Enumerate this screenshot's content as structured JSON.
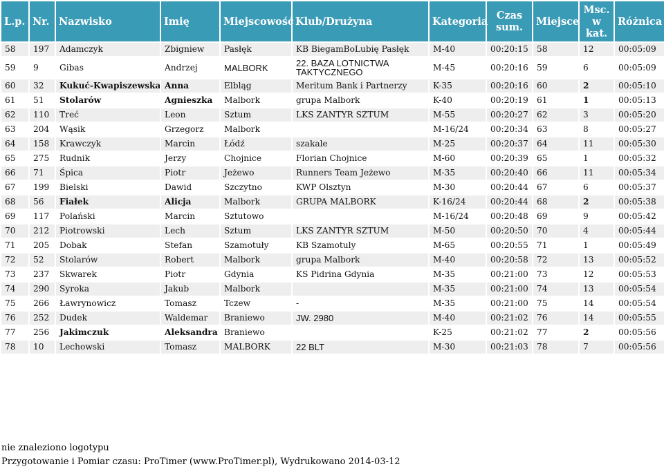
{
  "header": {
    "lp": "L.p.",
    "nr": "Nr.",
    "nazwisko": "Nazwisko",
    "imie": "Imię",
    "miejscowosc": "Miejscowość",
    "klub": "Klub/Drużyna",
    "kategoria": "Kategoria",
    "czas": "Czas sum.",
    "miejsce": "Miejsce",
    "msc_kat": "Msc. w kat.",
    "roznica": "Różnica"
  },
  "rows": [
    {
      "lp": "58",
      "nr": "197",
      "nazwisko": "Adamczyk",
      "imie": "Zbigniew",
      "miejscowosc": "Pasłęk",
      "klub": "KB BiegamBoLubię Pasłęk",
      "kategoria": "M-40",
      "czas": "00:20:15",
      "miejsce": "58",
      "msc_kat": "12",
      "roznica": "00:05:09"
    },
    {
      "lp": "59",
      "nr": "9",
      "nazwisko": "Gibas",
      "imie": "Andrzej",
      "miejscowosc": "MALBORK",
      "klub": "22. BAZA LOTNICTWA TAKTYCZNEGO",
      "kategoria": "M-45",
      "czas": "00:20:16",
      "miejsce": "59",
      "msc_kat": "6",
      "roznica": "00:05:09"
    },
    {
      "lp": "60",
      "nr": "32",
      "nazwisko": "Kukuć-Kwapiszewska",
      "imie": "Anna",
      "miejscowosc": "Elbląg",
      "klub": "Meritum Bank i Partnerzy",
      "kategoria": "K-35",
      "czas": "00:20:16",
      "miejsce": "60",
      "msc_kat": "2",
      "roznica": "00:05:10"
    },
    {
      "lp": "61",
      "nr": "51",
      "nazwisko": "Stolarów",
      "imie": "Agnieszka",
      "miejscowosc": "Malbork",
      "klub": "grupa Malbork",
      "kategoria": "K-40",
      "czas": "00:20:19",
      "miejsce": "61",
      "msc_kat": "1",
      "roznica": "00:05:13"
    },
    {
      "lp": "62",
      "nr": "110",
      "nazwisko": "Treć",
      "imie": "Leon",
      "miejscowosc": "Sztum",
      "klub": "LKS ZANTYR SZTUM",
      "kategoria": "M-55",
      "czas": "00:20:27",
      "miejsce": "62",
      "msc_kat": "3",
      "roznica": "00:05:20"
    },
    {
      "lp": "63",
      "nr": "204",
      "nazwisko": "Wąsik",
      "imie": "Grzegorz",
      "miejscowosc": "Malbork",
      "klub": "",
      "kategoria": "M-16/24",
      "czas": "00:20:34",
      "miejsce": "63",
      "msc_kat": "8",
      "roznica": "00:05:27"
    },
    {
      "lp": "64",
      "nr": "158",
      "nazwisko": "Krawczyk",
      "imie": "Marcin",
      "miejscowosc": "Łódź",
      "klub": "szakale",
      "kategoria": "M-25",
      "czas": "00:20:37",
      "miejsce": "64",
      "msc_kat": "11",
      "roznica": "00:05:30"
    },
    {
      "lp": "65",
      "nr": "275",
      "nazwisko": "Rudnik",
      "imie": "Jerzy",
      "miejscowosc": "Chojnice",
      "klub": "Florian Chojnice",
      "kategoria": "M-60",
      "czas": "00:20:39",
      "miejsce": "65",
      "msc_kat": "1",
      "roznica": "00:05:32"
    },
    {
      "lp": "66",
      "nr": "71",
      "nazwisko": "Śpica",
      "imie": "Piotr",
      "miejscowosc": "Jeżewo",
      "klub": "Runners Team Jeżewo",
      "kategoria": "M-35",
      "czas": "00:20:40",
      "miejsce": "66",
      "msc_kat": "11",
      "roznica": "00:05:34"
    },
    {
      "lp": "67",
      "nr": "199",
      "nazwisko": "Bielski",
      "imie": "Dawid",
      "miejscowosc": "Szczytno",
      "klub": "KWP Olsztyn",
      "kategoria": "M-30",
      "czas": "00:20:44",
      "miejsce": "67",
      "msc_kat": "6",
      "roznica": "00:05:37"
    },
    {
      "lp": "68",
      "nr": "56",
      "nazwisko": "Fiałek",
      "imie": "Alicja",
      "miejscowosc": "Malbork",
      "klub": "GRUPA MALBORK",
      "kategoria": "K-16/24",
      "czas": "00:20:44",
      "miejsce": "68",
      "msc_kat": "2",
      "roznica": "00:05:38"
    },
    {
      "lp": "69",
      "nr": "117",
      "nazwisko": "Polański",
      "imie": "Marcin",
      "miejscowosc": "Sztutowo",
      "klub": "",
      "kategoria": "M-16/24",
      "czas": "00:20:48",
      "miejsce": "69",
      "msc_kat": "9",
      "roznica": "00:05:42"
    },
    {
      "lp": "70",
      "nr": "212",
      "nazwisko": "Piotrowski",
      "imie": "Lech",
      "miejscowosc": "Sztum",
      "klub": "LKS ZANTYR SZTUM",
      "kategoria": "M-50",
      "czas": "00:20:50",
      "miejsce": "70",
      "msc_kat": "4",
      "roznica": "00:05:44"
    },
    {
      "lp": "71",
      "nr": "205",
      "nazwisko": "Dobak",
      "imie": "Stefan",
      "miejscowosc": "Szamotuły",
      "klub": "KB Szamotuly",
      "kategoria": "M-65",
      "czas": "00:20:55",
      "miejsce": "71",
      "msc_kat": "1",
      "roznica": "00:05:49"
    },
    {
      "lp": "72",
      "nr": "52",
      "nazwisko": "Stolarów",
      "imie": "Robert",
      "miejscowosc": "Malbork",
      "klub": "grupa Malbork",
      "kategoria": "M-40",
      "czas": "00:20:58",
      "miejsce": "72",
      "msc_kat": "13",
      "roznica": "00:05:52"
    },
    {
      "lp": "73",
      "nr": "237",
      "nazwisko": "Skwarek",
      "imie": "Piotr",
      "miejscowosc": "Gdynia",
      "klub": "KS Pidrina Gdynia",
      "kategoria": "M-35",
      "czas": "00:21:00",
      "miejsce": "73",
      "msc_kat": "12",
      "roznica": "00:05:53"
    },
    {
      "lp": "74",
      "nr": "290",
      "nazwisko": "Syroka",
      "imie": "Jakub",
      "miejscowosc": "Malbork",
      "klub": "",
      "kategoria": "M-35",
      "czas": "00:21:00",
      "miejsce": "74",
      "msc_kat": "13",
      "roznica": "00:05:54"
    },
    {
      "lp": "75",
      "nr": "266",
      "nazwisko": "Ławrynowicz",
      "imie": "Tomasz",
      "miejscowosc": "Tczew",
      "klub": "-",
      "kategoria": "M-35",
      "czas": "00:21:00",
      "miejsce": "75",
      "msc_kat": "14",
      "roznica": "00:05:54"
    },
    {
      "lp": "76",
      "nr": "252",
      "nazwisko": "Dudek",
      "imie": "Waldemar",
      "miejscowosc": "Braniewo",
      "klub": "JW. 2980",
      "kategoria": "M-40",
      "czas": "00:21:02",
      "miejsce": "76",
      "msc_kat": "14",
      "roznica": "00:05:55"
    },
    {
      "lp": "77",
      "nr": "256",
      "nazwisko": "Jakimczuk",
      "imie": "Aleksandra",
      "miejscowosc": "Braniewo",
      "klub": "",
      "kategoria": "K-25",
      "czas": "00:21:02",
      "miejsce": "77",
      "msc_kat": "2",
      "roznica": "00:05:56"
    },
    {
      "lp": "78",
      "nr": "10",
      "nazwisko": "Lechowski",
      "imie": "Tomasz",
      "miejscowosc": "MALBORK",
      "klub": "22 BLT",
      "kategoria": "M-30",
      "czas": "00:21:03",
      "miejsce": "78",
      "msc_kat": "7",
      "roznica": "00:05:56"
    }
  ],
  "female_rows": [
    "60",
    "61",
    "68",
    "77"
  ],
  "sans_cells": {
    "59": [
      "miejscowosc",
      "klub"
    ],
    "76": [
      "klub"
    ],
    "78": [
      "klub"
    ]
  },
  "colors": {
    "header_bg": "#3a9bb7",
    "header_text": "#ffffff",
    "row_odd": "#eeeeee",
    "row_even": "#ffffff"
  },
  "footer": {
    "logo_note": "nie znaleziono logotypu",
    "credits": "Przygotowanie i Pomiar czasu: ProTimer (www.ProTimer.pl), Wydrukowano 2014-03-12"
  }
}
